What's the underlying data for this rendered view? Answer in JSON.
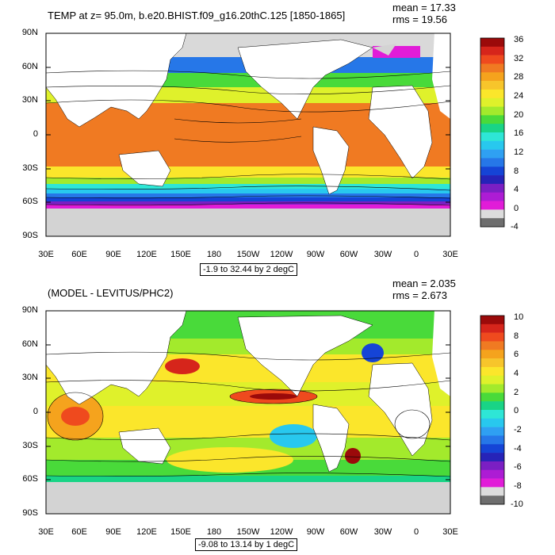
{
  "panels": [
    {
      "title": "TEMP at z=  95.0m, b.e20.BHIST.f09_g16.20thC.125 [1850-1865]",
      "mean": "mean = 17.33",
      "rms": "rms = 19.56",
      "contour_info": "-1.9 to 32.44 by 2 degC",
      "lat_labels": [
        "90N",
        "60N",
        "30N",
        "0",
        "30S",
        "60S",
        "90S"
      ],
      "lon_labels": [
        "30E",
        "60E",
        "90E",
        "120E",
        "150E",
        "180",
        "150W",
        "120W",
        "90W",
        "60W",
        "30W",
        "0",
        "30E"
      ],
      "colorbar_labels": [
        "36",
        "32",
        "28",
        "24",
        "20",
        "16",
        "12",
        "8",
        "4",
        "0",
        "-4"
      ],
      "colorbar_colors": [
        "#9b0a0a",
        "#d6251b",
        "#ef4a1e",
        "#f07a22",
        "#f5a31d",
        "#f7c52b",
        "#fbe62b",
        "#dff12b",
        "#a3ea2c",
        "#49da3a",
        "#19d486",
        "#2ee6d6",
        "#28c8ee",
        "#2fa0f2",
        "#2677e8",
        "#1544d6",
        "#2623b8",
        "#7b1fc3",
        "#ad1cd4",
        "#e11cd8",
        "#dcdcdc",
        "#6e6e6e"
      ]
    },
    {
      "title": "(MODEL - LEVITUS/PHC2)",
      "mean": "mean = 2.035",
      "rms": "rms = 2.673",
      "contour_info": "-9.08 to 13.14 by 1 degC",
      "lat_labels": [
        "90N",
        "60N",
        "30N",
        "0",
        "30S",
        "60S",
        "90S"
      ],
      "lon_labels": [
        "30E",
        "60E",
        "90E",
        "120E",
        "150E",
        "180",
        "150W",
        "120W",
        "90W",
        "60W",
        "30W",
        "0",
        "30E"
      ],
      "colorbar_labels": [
        "10",
        "8",
        "6",
        "4",
        "2",
        "0",
        "-2",
        "-4",
        "-6",
        "-8",
        "-10"
      ],
      "colorbar_colors": [
        "#9b0a0a",
        "#d6251b",
        "#ef4a1e",
        "#f07a22",
        "#f5a31d",
        "#f7c52b",
        "#fbe62b",
        "#dff12b",
        "#a3ea2c",
        "#49da3a",
        "#19d486",
        "#2ee6d6",
        "#28c8ee",
        "#2fa0f2",
        "#2677e8",
        "#1544d6",
        "#2623b8",
        "#7b1fc3",
        "#ad1cd4",
        "#e11cd8",
        "#dcdcdc",
        "#6e6e6e"
      ]
    }
  ],
  "land_color": "#ffffff",
  "ice_color": "#d3d3d3"
}
